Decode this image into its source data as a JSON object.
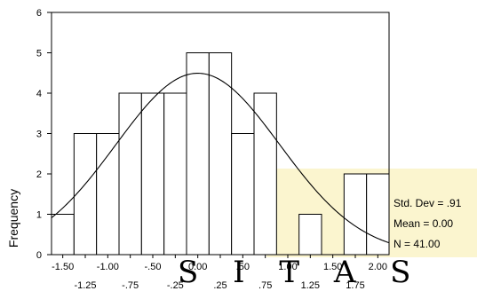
{
  "chart_data": {
    "type": "bar",
    "ylabel": "Frequency",
    "xlabel": "",
    "ylim": [
      0,
      6
    ],
    "xlim": [
      -1.625,
      2.125
    ],
    "yticks": [
      0,
      1,
      2,
      3,
      4,
      5,
      6
    ],
    "xticks_upper": [
      {
        "value": -1.5,
        "label": "-1.50"
      },
      {
        "value": -1.0,
        "label": "-1.00"
      },
      {
        "value": -0.5,
        "label": "-.50"
      },
      {
        "value": 0.0,
        "label": "0.00"
      },
      {
        "value": 0.5,
        "label": ".50"
      },
      {
        "value": 1.0,
        "label": "1.00"
      },
      {
        "value": 1.5,
        "label": "1.50"
      },
      {
        "value": 2.0,
        "label": "2.00"
      }
    ],
    "xticks_lower": [
      {
        "value": -1.25,
        "label": "-1.25"
      },
      {
        "value": -0.75,
        "label": "-.75"
      },
      {
        "value": -0.25,
        "label": "-.25"
      },
      {
        "value": 0.25,
        "label": ".25"
      },
      {
        "value": 0.75,
        "label": ".75"
      },
      {
        "value": 1.25,
        "label": "1.25"
      },
      {
        "value": 1.75,
        "label": "1.75"
      }
    ],
    "bin_width": 0.25,
    "bins": [
      {
        "center": -1.5,
        "count": 1
      },
      {
        "center": -1.25,
        "count": 3
      },
      {
        "center": -1.0,
        "count": 3
      },
      {
        "center": -0.75,
        "count": 4
      },
      {
        "center": -0.5,
        "count": 4
      },
      {
        "center": -0.25,
        "count": 4
      },
      {
        "center": 0.0,
        "count": 5
      },
      {
        "center": 0.25,
        "count": 5
      },
      {
        "center": 0.5,
        "count": 3
      },
      {
        "center": 0.75,
        "count": 4
      },
      {
        "center": 1.0,
        "count": 0
      },
      {
        "center": 1.25,
        "count": 1
      },
      {
        "center": 1.5,
        "count": 0
      },
      {
        "center": 1.75,
        "count": 2
      },
      {
        "center": 2.0,
        "count": 2
      }
    ],
    "normal_curve": {
      "mean": 0.0,
      "std_dev": 0.91,
      "n": 41
    },
    "stats": {
      "std_dev": "Std. Dev = .91",
      "mean": "Mean = 0.00",
      "n": "N = 41.00"
    },
    "grid": false
  },
  "watermark": {
    "text": "S I T A S",
    "color": "#f8f1c4"
  }
}
